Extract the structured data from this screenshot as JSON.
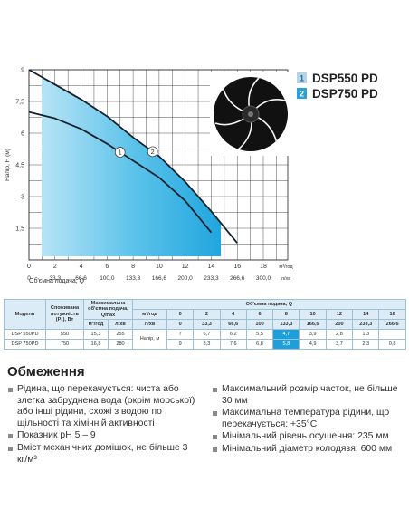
{
  "chart": {
    "y_axis_label": "Напір, Н (м)",
    "y_ticks": [
      "1,5",
      "3",
      "4,5",
      "6",
      "7,5",
      "9"
    ],
    "x_ticks_m3": [
      "0",
      "2",
      "4",
      "6",
      "8",
      "10",
      "12",
      "14",
      "16",
      "18"
    ],
    "x_unit_m3": "м³/год",
    "x_ticks_l": [
      "0",
      "33,3",
      "66,6",
      "100,0",
      "133,3",
      "166,6",
      "200,0",
      "233,3",
      "266,6",
      "300,0"
    ],
    "x_unit_l": "л/хв",
    "x_axis_label": "Об'ємна подача, Q"
  },
  "legend": [
    {
      "number": "1",
      "name": "DSP550 PD",
      "color": "#b9d3e4"
    },
    {
      "number": "2",
      "name": "DSP750 PD",
      "color": "#2a9fd8"
    }
  ],
  "table": {
    "headers": {
      "model": "Модель",
      "power": "Споживана потужність (P₁), Вт",
      "qmax": "Максимальна об'ємна подача, Qmax",
      "qmax_m3": "м³/год",
      "qmax_l": "л/хв",
      "flow": "Об'ємна подача, Q",
      "flow_m3_label": "м³/год",
      "flow_m3": [
        "0",
        "2",
        "4",
        "6",
        "8",
        "10",
        "12",
        "14",
        "16"
      ],
      "flow_l_label": "л/хв",
      "flow_l": [
        "0",
        "33,3",
        "66,6",
        "100",
        "133,3",
        "166,6",
        "200",
        "233,3",
        "266,6"
      ],
      "head_label": "Напір, м"
    },
    "rows": [
      {
        "model": "DSP 550PD",
        "power": "550",
        "qmax_m3": "15,3",
        "qmax_l": "255",
        "head": [
          "7",
          "6,7",
          "6,2",
          "5,5",
          "4,7",
          "3,9",
          "2,8",
          "1,3",
          null
        ]
      },
      {
        "model": "DSP 750PD",
        "power": "750",
        "qmax_m3": "16,8",
        "qmax_l": "280",
        "head": [
          "9",
          "8,3",
          "7,6",
          "6,8",
          "5,8",
          "4,9",
          "3,7",
          "2,3",
          "0,8"
        ]
      }
    ]
  },
  "restrictions": {
    "title": "Обмеження",
    "left": [
      "Рідина, що перекачується: чиста або злегка забруднена вода (окрім морської) або інші рідини, схожі з водою по щільності та хімічній активності",
      "Показник pH 5 – 9",
      "Вміст механічних домішок, не більше 3 кг/м³"
    ],
    "right": [
      "Максимальний розмір часток, не більше 30 мм",
      "Максимальна температура рідини, що перекачується: +35°C",
      "Мінімальний рівень осушення: 235 мм",
      "Мінімальний діаметр колодязя: 600 мм"
    ]
  }
}
